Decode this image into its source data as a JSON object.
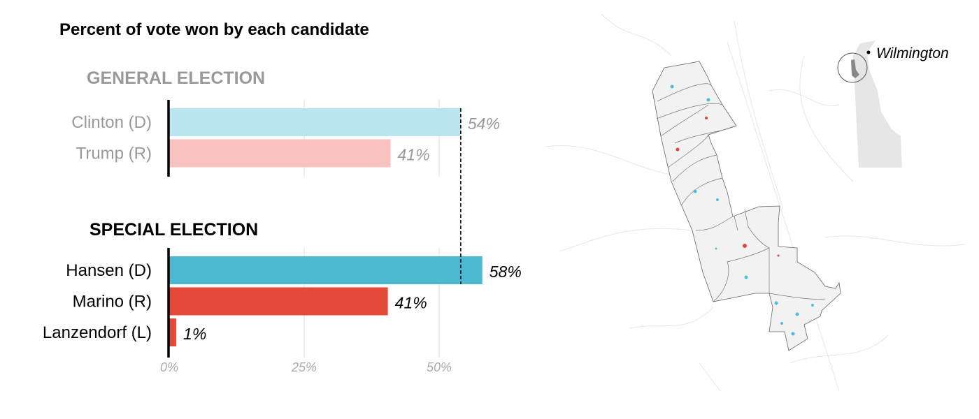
{
  "chart_data": {
    "type": "bar",
    "title": "Percent of vote won by each candidate",
    "xlim": [
      0,
      60
    ],
    "xticks": [
      "0%",
      "25%",
      "50%"
    ],
    "xtick_values": [
      0,
      25,
      50
    ],
    "reference_line": 54,
    "groups": [
      {
        "name": "GENERAL ELECTION",
        "bars": [
          {
            "label": "Clinton (D)",
            "value": 54,
            "value_label": "54%",
            "color": "#bce5f2"
          },
          {
            "label": "Trump (R)",
            "value": 41,
            "value_label": "41%",
            "color": "#f7c2c0"
          }
        ]
      },
      {
        "name": "SPECIAL ELECTION",
        "bars": [
          {
            "label": "Hansen (D)",
            "value": 58,
            "value_label": "58%",
            "color": "#48b8cf"
          },
          {
            "label": "Marino (R)",
            "value": 40.5,
            "value_label": "41%",
            "color": "#e44433"
          },
          {
            "label": "Lanzendorf (L)",
            "value": 1.3,
            "value_label": "1%",
            "color": "#e44433"
          }
        ]
      }
    ]
  },
  "map": {
    "city_label": "Wilmington",
    "dem_color": "#4dbde0",
    "rep_color": "#e44433"
  }
}
